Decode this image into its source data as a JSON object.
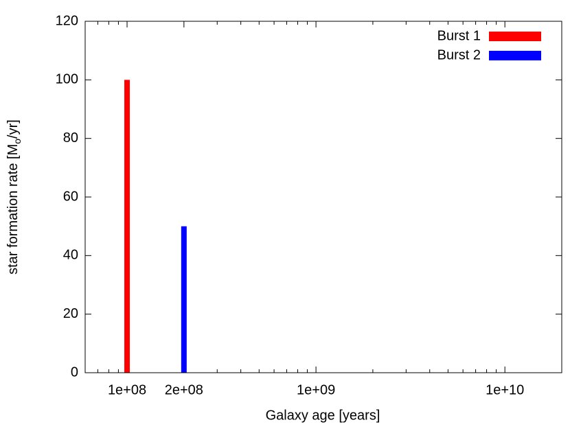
{
  "chart_data": {
    "type": "impulse",
    "xlabel": "Galaxy age [years]",
    "ylabel": [
      "star formation rate [M",
      "o",
      "/yr]"
    ],
    "xlog": true,
    "xlim": [
      60000000,
      20000000000
    ],
    "ylim": [
      0,
      120
    ],
    "xticks": [
      {
        "value": 100000000,
        "label": "1e+08"
      },
      {
        "value": 200000000,
        "label": "2e+08"
      },
      {
        "value": 1000000000,
        "label": "1e+09"
      },
      {
        "value": 10000000000,
        "label": "1e+10"
      }
    ],
    "xminorticks": [
      70000000,
      80000000,
      90000000,
      300000000,
      400000000,
      500000000,
      600000000,
      700000000,
      800000000,
      900000000,
      2000000000,
      3000000000,
      4000000000,
      5000000000,
      6000000000,
      7000000000,
      8000000000,
      9000000000
    ],
    "yticks": [
      0,
      20,
      40,
      60,
      80,
      100,
      120
    ],
    "legend": "top-right",
    "series": [
      {
        "name": "Burst 1",
        "color": "#ff0000",
        "x": [
          100000000
        ],
        "values": [
          100
        ]
      },
      {
        "name": "Burst 2",
        "color": "#0000ff",
        "x": [
          200000000
        ],
        "values": [
          50
        ]
      }
    ]
  }
}
